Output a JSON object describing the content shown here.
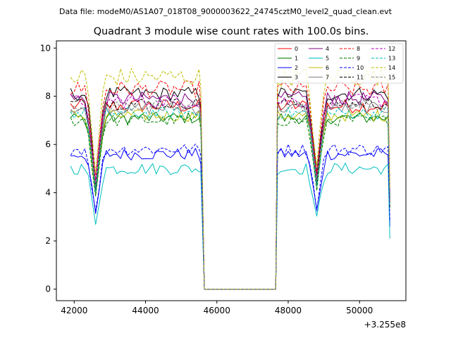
{
  "figure": {
    "suptitle": "Data file: modeM0/AS1A07_018T08_9000003622_24745cztM0_level2_quad_clean.evt"
  },
  "chart_data": {
    "type": "line",
    "title": "Quadrant 3 module wise count rates with 100.0s bins.",
    "xlabel": "",
    "ylabel": "",
    "x_offset_label": "+3.255e8",
    "xlim": [
      41500,
      51300
    ],
    "ylim": [
      -0.48,
      10.3
    ],
    "xticks": [
      42000,
      44000,
      46000,
      48000,
      50000
    ],
    "xtick_labels": [
      "42000",
      "44000",
      "46000",
      "48000",
      "50000"
    ],
    "yticks": [
      0,
      2,
      4,
      6,
      8,
      10
    ],
    "ytick_labels": [
      "0",
      "2",
      "4",
      "6",
      "8",
      "10"
    ],
    "grid": false,
    "legend": {
      "placement": "top-right",
      "columns": 4
    },
    "segments": [
      {
        "start": 41900,
        "end": 45500
      },
      {
        "start": 47700,
        "end": 50800
      }
    ],
    "gap_range": [
      45650,
      47650
    ],
    "gap_value": 0,
    "dips": [
      {
        "x": 42600,
        "depth": 0.45
      },
      {
        "x": 48800,
        "depth": 0.42
      }
    ],
    "series": [
      {
        "name": "0",
        "color": "#ff0000",
        "dash": "solid",
        "level": 7.6,
        "amplitude": 0.3,
        "end_value": 3.6
      },
      {
        "name": "1",
        "color": "#008000",
        "dash": "solid",
        "level": 7.1,
        "amplitude": 0.25,
        "end_value": 3.4
      },
      {
        "name": "2",
        "color": "#0000ff",
        "dash": "solid",
        "level": 5.6,
        "amplitude": 0.25,
        "end_value": 2.6
      },
      {
        "name": "3",
        "color": "#000000",
        "dash": "solid",
        "level": 8.1,
        "amplitude": 0.3,
        "end_value": 3.9
      },
      {
        "name": "4",
        "color": "#800080",
        "dash": "solid",
        "level": 7.9,
        "amplitude": 0.3,
        "end_value": 3.8
      },
      {
        "name": "5",
        "color": "#00bfbf",
        "dash": "solid",
        "level": 5.0,
        "amplitude": 0.25,
        "end_value": 2.1
      },
      {
        "name": "6",
        "color": "#bfbf00",
        "dash": "solid",
        "level": 7.2,
        "amplitude": 0.25,
        "end_value": 3.4
      },
      {
        "name": "7",
        "color": "#808080",
        "dash": "solid",
        "level": 7.5,
        "amplitude": 0.25,
        "end_value": 3.5
      },
      {
        "name": "8",
        "color": "#ff0000",
        "dash": "dashed",
        "level": 8.3,
        "amplitude": 0.35,
        "end_value": 4.0
      },
      {
        "name": "9",
        "color": "#008000",
        "dash": "dashed",
        "level": 7.0,
        "amplitude": 0.25,
        "end_value": 3.3
      },
      {
        "name": "10",
        "color": "#0000ff",
        "dash": "dashed",
        "level": 5.8,
        "amplitude": 0.25,
        "end_value": 2.8
      },
      {
        "name": "11",
        "color": "#000000",
        "dash": "dashed",
        "level": 7.7,
        "amplitude": 0.25,
        "end_value": 3.7
      },
      {
        "name": "12",
        "color": "#bf00bf",
        "dash": "dashed",
        "level": 7.8,
        "amplitude": 0.3,
        "end_value": 3.7
      },
      {
        "name": "13",
        "color": "#00bfbf",
        "dash": "dashed",
        "level": 7.3,
        "amplitude": 0.25,
        "end_value": 3.5
      },
      {
        "name": "14",
        "color": "#bfbf00",
        "dash": "dashed",
        "level": 8.8,
        "amplitude": 0.4,
        "end_value": 4.2
      },
      {
        "name": "15",
        "color": "#808080",
        "dash": "dashed",
        "level": 7.6,
        "amplitude": 0.25,
        "end_value": 3.6
      }
    ]
  }
}
